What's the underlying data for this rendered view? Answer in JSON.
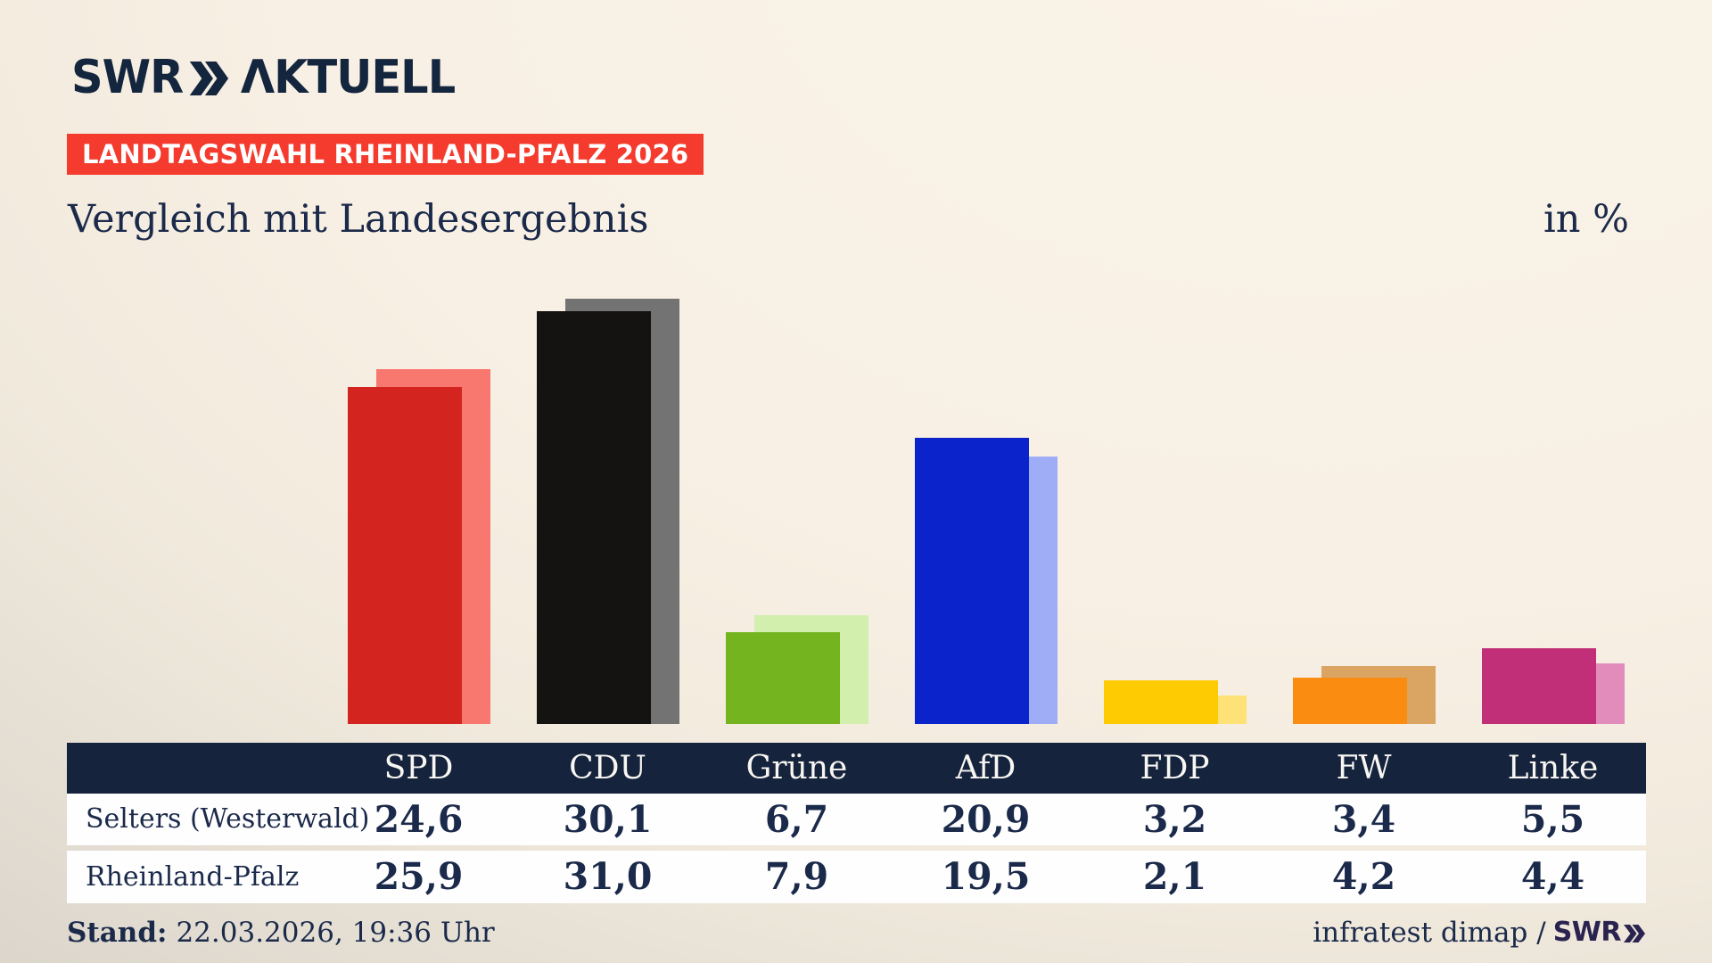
{
  "header": {
    "logo": {
      "brand": "SWR",
      "product": "AKTUELL",
      "product_display": "ΛKTUELL"
    },
    "badge": "LANDTAGSWAHL RHEINLAND-PFALZ 2026",
    "title": "Vergleich mit Landesergebnis",
    "unit": "in %"
  },
  "chart_data": {
    "type": "bar",
    "unit": "%",
    "title": "Vergleich mit Landesergebnis",
    "categories": [
      "SPD",
      "CDU",
      "Grüne",
      "AfD",
      "FDP",
      "FW",
      "Linke"
    ],
    "series": [
      {
        "name": "Selters (Westerwald)",
        "role": "front-bar",
        "values": [
          24.6,
          30.1,
          6.7,
          20.9,
          3.2,
          3.4,
          5.5
        ],
        "colors": [
          "#d3241f",
          "#151312",
          "#74b41e",
          "#0b23ca",
          "#fecb02",
          "#fb8c12",
          "#c02f77"
        ]
      },
      {
        "name": "Rheinland-Pfalz",
        "role": "back-bar",
        "values": [
          25.9,
          31.0,
          7.9,
          19.5,
          2.1,
          4.2,
          4.4
        ],
        "colors": [
          "#f87870",
          "#737373",
          "#d2efad",
          "#9fadf6",
          "#fee177",
          "#daa462",
          "#e18cbb"
        ]
      }
    ],
    "ylim": [
      0,
      31
    ],
    "axes": "none shown; paired offset bars over common baseline, values in table below",
    "legend": "table row labels act as legend"
  },
  "table": {
    "columns": [
      "SPD",
      "CDU",
      "Grüne",
      "AfD",
      "FDP",
      "FW",
      "Linke"
    ],
    "rows": [
      {
        "label": "Selters (Westerwald)",
        "values": [
          "24,6",
          "30,1",
          "6,7",
          "20,9",
          "3,2",
          "3,4",
          "5,5"
        ]
      },
      {
        "label": "Rheinland-Pfalz",
        "values": [
          "25,9",
          "31,0",
          "7,9",
          "19,5",
          "2,1",
          "4,2",
          "4,4"
        ]
      }
    ]
  },
  "footer": {
    "stand_label": "Stand:",
    "stand_value": "22.03.2026, 19:36 Uhr",
    "source_text": "infratest dimap /",
    "source_brand": "SWR"
  },
  "colors": {
    "background_top": "#faf3e8",
    "background_corner": "#d3cec6",
    "navy_text": "#1b2a4a",
    "table_header_bg": "#15233d",
    "badge_bg": "#f43b2e",
    "badge_text": "#ffffff",
    "row_bg": "#fefefe",
    "logo_navy": "#14253e"
  }
}
